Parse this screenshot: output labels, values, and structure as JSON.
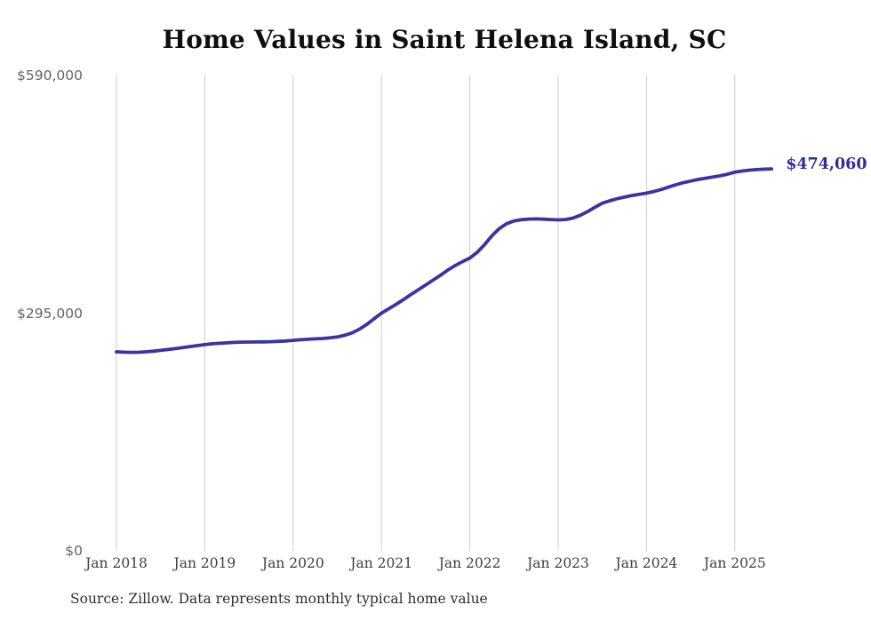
{
  "title": "Home Values in Saint Helena Island, SC",
  "end_label": "$474,060",
  "source": "Source: Zillow. Data represents monthly typical home value",
  "colors": {
    "line": "#3a34a3",
    "grid": "#cccccc",
    "y_tick_text": "#646464",
    "x_tick_text": "#3d3d3d",
    "end_label_text": "#322b9e",
    "title_text": "#0f0f0f"
  },
  "y_axis": {
    "ticks": [
      {
        "label": "$590,000",
        "value": 590000
      },
      {
        "label": "$295,000",
        "value": 295000
      },
      {
        "label": "$0",
        "value": 0
      }
    ]
  },
  "x_axis": {
    "ticks": [
      "Jan 2018",
      "Jan 2019",
      "Jan 2020",
      "Jan 2021",
      "Jan 2022",
      "Jan 2023",
      "Jan 2024",
      "Jan 2025"
    ]
  },
  "chart_data": {
    "type": "line",
    "title": "Home Values in Saint Helena Island, SC",
    "xlabel": "",
    "ylabel": "",
    "ylim": [
      0,
      590000
    ],
    "grid": "vertical-yearly",
    "legend": "none",
    "unit": "USD",
    "frequency": "monthly",
    "x_start": "Jan 2018",
    "x_end": "Jun 2025",
    "end_value": 474060,
    "end_value_label": "$474,060",
    "series": [
      {
        "name": "Typical home value",
        "values": [
          247000,
          246600,
          246400,
          246500,
          247000,
          247800,
          248800,
          249900,
          251000,
          252200,
          253500,
          254800,
          256000,
          256900,
          257600,
          258200,
          258700,
          259000,
          259200,
          259300,
          259400,
          259600,
          260000,
          260500,
          261200,
          262000,
          262600,
          263100,
          263600,
          264300,
          265500,
          267500,
          270500,
          275000,
          281000,
          288000,
          295000,
          300500,
          306000,
          312000,
          318000,
          324000,
          330000,
          336000,
          342000,
          348500,
          354000,
          359000,
          363400,
          370500,
          380000,
          391000,
          400000,
          406000,
          409500,
          411000,
          411800,
          412000,
          411700,
          411200,
          410800,
          411200,
          413000,
          416500,
          421000,
          426500,
          431500,
          434500,
          437000,
          439000,
          441000,
          442500,
          444000,
          446000,
          448500,
          451500,
          454500,
          457000,
          459000,
          461000,
          462500,
          464000,
          465500,
          467500,
          470000,
          471500,
          472500,
          473200,
          473800,
          474060
        ]
      }
    ]
  }
}
